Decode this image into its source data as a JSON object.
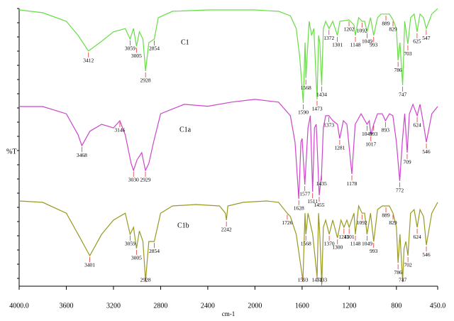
{
  "chart_data": {
    "type": "line",
    "xlabel": "cm-1",
    "ylabel": "%T",
    "xlim": [
      4000,
      450
    ],
    "ylim": [
      0,
      100
    ],
    "xticks": [
      {
        "value": 4000,
        "label": "4000.0"
      },
      3600,
      3200,
      2800,
      2400,
      2000,
      1600,
      1200,
      800,
      {
        "value": 450,
        "label": "450.0"
      }
    ],
    "series": [
      {
        "name": "C1",
        "color": "#66dd44",
        "x": [
          4000,
          3800,
          3600,
          3500,
          3412,
          3300,
          3200,
          3100,
          3059,
          3030,
          3005,
          2980,
          2950,
          2928,
          2900,
          2854,
          2820,
          2700,
          2400,
          2000,
          1800,
          1700,
          1650,
          1620,
          1590,
          1575,
          1568,
          1540,
          1520,
          1500,
          1490,
          1473,
          1460,
          1450,
          1434,
          1420,
          1400,
          1372,
          1340,
          1301,
          1280,
          1202,
          1160,
          1148,
          1120,
          1092,
          1070,
          1049,
          1020,
          993,
          960,
          930,
          889,
          860,
          829,
          800,
          786,
          770,
          747,
          730,
          703,
          680,
          650,
          625,
          600,
          570,
          547,
          500,
          450
        ],
        "values": [
          99.5,
          98.5,
          95.4,
          90.3,
          84.7,
          88.2,
          91.6,
          92.8,
          89.0,
          92.8,
          86.4,
          91.6,
          89.0,
          77.5,
          87.7,
          89.0,
          96.7,
          99.0,
          99.5,
          99.5,
          99.0,
          97.4,
          92.8,
          82.6,
          66.0,
          87.7,
          74.9,
          95.4,
          90.3,
          92.8,
          82.6,
          67.3,
          90.3,
          87.7,
          72.4,
          92.8,
          95.4,
          92.8,
          95.4,
          90.3,
          95.4,
          95.9,
          94.1,
          90.3,
          96.7,
          95.4,
          95.4,
          91.6,
          96.7,
          90.3,
          96.7,
          98.0,
          98.0,
          98.0,
          95.9,
          92.8,
          81.3,
          87.7,
          72.4,
          95.4,
          87.2,
          96.7,
          98.0,
          91.6,
          98.0,
          96.7,
          92.8,
          98.0,
          100
        ],
        "peaks": [
          3412,
          3059,
          3005,
          2928,
          2854,
          1590,
          1568,
          1473,
          1434,
          1372,
          1301,
          1202,
          1148,
          1092,
          1049,
          993,
          889,
          829,
          786,
          747,
          703,
          625,
          547
        ]
      },
      {
        "name": "C1a",
        "color": "#cc44cc",
        "x": [
          4000,
          3800,
          3600,
          3500,
          3468,
          3400,
          3300,
          3200,
          3146,
          3100,
          3050,
          3030,
          3000,
          2960,
          2929,
          2900,
          2860,
          2800,
          2600,
          2400,
          2200,
          2000,
          1800,
          1700,
          1660,
          1628,
          1610,
          1600,
          1577,
          1550,
          1530,
          1511,
          1495,
          1480,
          1455,
          1435,
          1420,
          1400,
          1373,
          1340,
          1300,
          1281,
          1250,
          1220,
          1178,
          1150,
          1100,
          1049,
          1030,
          1017,
          993,
          960,
          920,
          893,
          860,
          830,
          800,
          772,
          750,
          730,
          709,
          690,
          660,
          624,
          600,
          570,
          546,
          500,
          450
        ],
        "values": [
          64.7,
          64.7,
          62.1,
          54.5,
          50.6,
          55.8,
          58.3,
          57.0,
          59.6,
          54.5,
          44.2,
          41.7,
          45.5,
          48.1,
          41.7,
          44.2,
          51.9,
          62.1,
          65.5,
          64.8,
          66.3,
          67.3,
          66.3,
          61.4,
          51.9,
          31.5,
          51.9,
          53.2,
          36.6,
          57.0,
          61.4,
          34.0,
          57.0,
          58.3,
          32.7,
          40.4,
          57.0,
          61.4,
          61.4,
          59.6,
          58.3,
          53.2,
          59.6,
          58.3,
          40.4,
          58.3,
          62.1,
          58.3,
          59.6,
          54.5,
          58.3,
          62.1,
          62.1,
          59.6,
          62.1,
          61.4,
          51.9,
          37.9,
          51.9,
          62.1,
          48.1,
          62.1,
          65.5,
          61.4,
          65.5,
          58.3,
          51.9,
          62.1,
          64.7
        ],
        "peaks": [
          3468,
          3146,
          3030,
          2929,
          1628,
          1577,
          1511,
          1455,
          1435,
          1373,
          1281,
          1178,
          1049,
          1017,
          993,
          893,
          772,
          709,
          624,
          546
        ]
      },
      {
        "name": "C1b",
        "color": "#999922",
        "x": [
          4000,
          3800,
          3600,
          3500,
          3401,
          3300,
          3200,
          3100,
          3059,
          3030,
          3005,
          2980,
          2950,
          2928,
          2900,
          2854,
          2800,
          2700,
          2500,
          2300,
          2250,
          2242,
          2230,
          2100,
          1900,
          1800,
          1726,
          1700,
          1650,
          1593,
          1575,
          1568,
          1550,
          1510,
          1473,
          1460,
          1450,
          1433,
          1420,
          1400,
          1370,
          1340,
          1300,
          1270,
          1245,
          1220,
          1201,
          1160,
          1148,
          1120,
          1092,
          1070,
          1049,
          1020,
          993,
          960,
          920,
          889,
          860,
          829,
          800,
          786,
          770,
          747,
          735,
          720,
          702,
          680,
          650,
          624,
          600,
          570,
          546,
          500,
          450
        ],
        "values": [
          30.7,
          30.2,
          26.3,
          18.7,
          11.0,
          18.7,
          23.8,
          26.3,
          18.7,
          21.2,
          13.6,
          19.9,
          16.1,
          2.0,
          16.1,
          16.1,
          26.3,
          28.9,
          29.4,
          28.9,
          26.3,
          23.8,
          28.9,
          30.2,
          30.7,
          30.2,
          26.3,
          25.1,
          18.7,
          2.0,
          26.3,
          18.7,
          26.3,
          18.7,
          3.3,
          26.3,
          18.7,
          0.8,
          21.2,
          23.8,
          18.7,
          23.8,
          17.4,
          23.8,
          21.2,
          23.8,
          21.2,
          26.3,
          18.7,
          28.9,
          26.3,
          26.3,
          18.7,
          26.3,
          16.1,
          27.6,
          28.9,
          28.9,
          28.9,
          26.3,
          21.2,
          8.4,
          18.7,
          2.0,
          13.6,
          16.1,
          11.0,
          26.3,
          27.6,
          21.2,
          27.6,
          25.1,
          14.8,
          26.3,
          30.2
        ],
        "peaks": [
          3401,
          3059,
          3005,
          2928,
          2854,
          2242,
          1726,
          1593,
          1568,
          1473,
          1433,
          1370,
          1300,
          1245,
          1201,
          1148,
          1092,
          1049,
          993,
          889,
          829,
          786,
          747,
          702,
          624,
          546
        ]
      }
    ]
  }
}
